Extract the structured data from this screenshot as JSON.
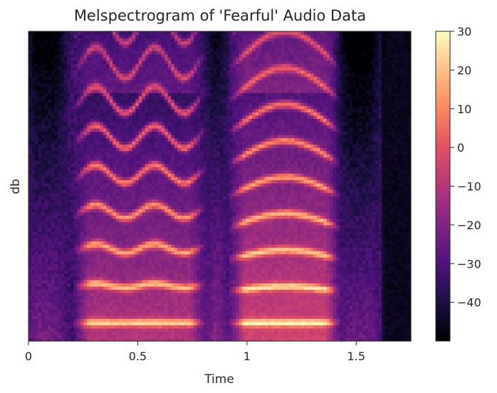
{
  "chart_data": {
    "type": "heatmap",
    "title": "Melspectrogram of 'Fearful' Audio Data",
    "xlabel": "Time",
    "ylabel": "db",
    "xlim": [
      0,
      1.75
    ],
    "x_ticks": [
      {
        "value": 0,
        "label": "0"
      },
      {
        "value": 0.5,
        "label": "0.5"
      },
      {
        "value": 1,
        "label": "1"
      },
      {
        "value": 1.5,
        "label": "1.5"
      }
    ],
    "colorbar": {
      "range": [
        -50,
        30
      ],
      "colormap": "magma",
      "ticks": [
        {
          "value": 30,
          "label": "30"
        },
        {
          "value": 20,
          "label": "20"
        },
        {
          "value": 10,
          "label": "10"
        },
        {
          "value": 0,
          "label": "0"
        },
        {
          "value": -10,
          "label": "−10"
        },
        {
          "value": -20,
          "label": "−20"
        },
        {
          "value": -30,
          "label": "−30"
        },
        {
          "value": -40,
          "label": "−40"
        }
      ]
    },
    "time_frames": 118,
    "mel_bins": 96,
    "silence_after_time": 1.62,
    "segments": [
      {
        "start": 0.0,
        "end": 0.16,
        "level": -22
      },
      {
        "start": 0.24,
        "end": 0.78,
        "level": 4,
        "harmonic_base": 0.12,
        "pitch_curve": "wave"
      },
      {
        "start": 0.82,
        "end": 0.9,
        "level": -18
      },
      {
        "start": 0.95,
        "end": 1.4,
        "level": 10,
        "harmonic_base": 0.105,
        "pitch_curve": "arch"
      },
      {
        "start": 1.43,
        "end": 1.6,
        "level": -24
      }
    ],
    "colors": {
      "axis": "#262626",
      "background": "#ffffff"
    }
  }
}
